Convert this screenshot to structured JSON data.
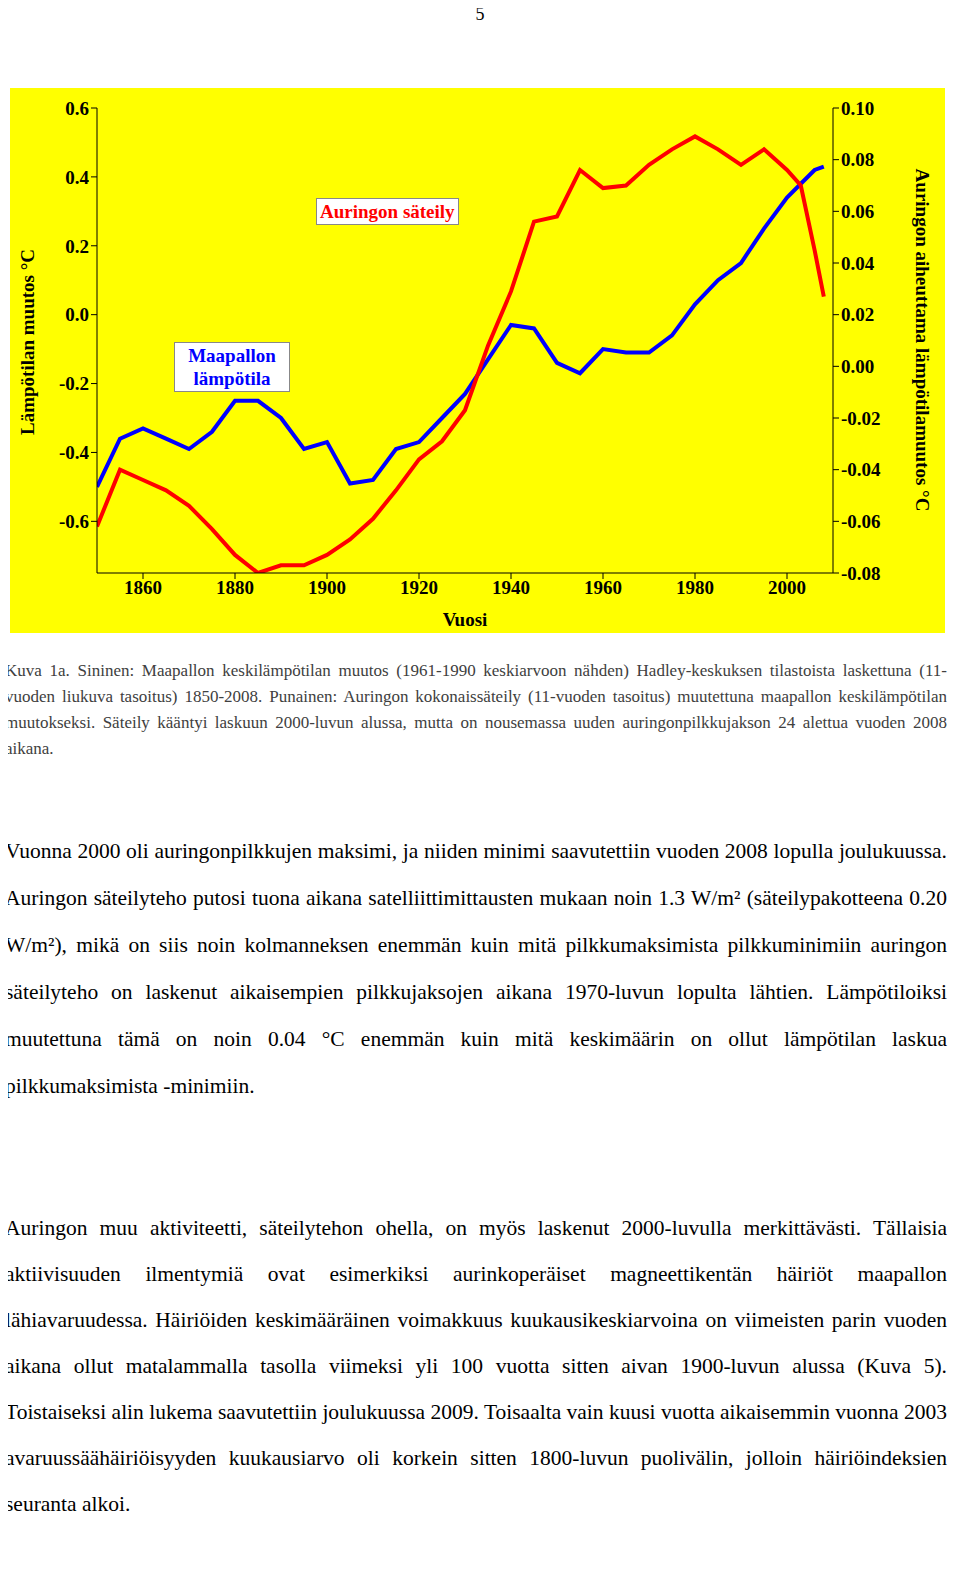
{
  "page_number": "5",
  "chart_data": {
    "type": "line",
    "x": [
      1850,
      1855,
      1860,
      1865,
      1870,
      1875,
      1880,
      1885,
      1890,
      1895,
      1900,
      1905,
      1910,
      1915,
      1920,
      1925,
      1930,
      1935,
      1940,
      1945,
      1950,
      1955,
      1960,
      1965,
      1970,
      1975,
      1980,
      1985,
      1990,
      1995,
      2000,
      2003,
      2006,
      2008
    ],
    "xlim": [
      1850,
      2010
    ],
    "xticks": [
      1860,
      1880,
      1900,
      1920,
      1940,
      1960,
      1980,
      2000
    ],
    "x_label": "Vuosi",
    "y_label": "Lämpötilan muutos °C",
    "y2_label": "Auringon aiheuttama lämpötilamuutos °C",
    "ylim": [
      -0.75,
      0.6
    ],
    "yticks": [
      -0.6,
      -0.4,
      -0.2,
      {
        "value": 0,
        "label": "0.0"
      },
      0.2,
      0.4,
      0.6
    ],
    "y2lim": [
      -0.08,
      0.1
    ],
    "y2ticks": [
      -0.08,
      -0.06,
      -0.04,
      -0.02,
      {
        "value": 0,
        "label": "0.00"
      },
      0.02,
      0.04,
      0.06,
      0.08,
      {
        "value": 0.1,
        "label": "0.10"
      }
    ],
    "grid": false,
    "series": [
      {
        "name": "Maapallon lämpötila",
        "color": "#0000ff",
        "values": [
          -0.5,
          -0.36,
          -0.33,
          -0.36,
          -0.39,
          -0.34,
          -0.25,
          -0.25,
          -0.3,
          -0.39,
          -0.37,
          -0.49,
          -0.48,
          -0.39,
          -0.37,
          -0.3,
          -0.23,
          -0.13,
          -0.03,
          -0.04,
          -0.14,
          -0.17,
          -0.1,
          -0.11,
          -0.11,
          -0.06,
          0.03,
          0.1,
          0.15,
          0.25,
          0.34,
          0.38,
          0.42,
          0.43
        ]
      },
      {
        "name": "Auringon säteily",
        "color": "#ff0000",
        "axis": "y2",
        "values": [
          -0.062,
          -0.04,
          -0.044,
          -0.048,
          -0.054,
          -0.063,
          -0.073,
          -0.08,
          -0.077,
          -0.077,
          -0.073,
          -0.067,
          -0.059,
          -0.048,
          -0.036,
          -0.029,
          -0.017,
          0.008,
          0.029,
          0.056,
          0.058,
          0.076,
          0.069,
          0.07,
          0.078,
          0.084,
          0.089,
          0.084,
          0.078,
          0.084,
          0.076,
          0.07,
          0.045,
          0.027
        ]
      }
    ]
  },
  "caption": "Kuva 1a. Sininen: Maapallon keskilämpötilan muutos (1961-1990 keskiarvoon nähden) Hadley-keskuksen tilastoista laskettuna (11-vuoden liukuva tasoitus) 1850-2008. Punainen: Auringon kokonaissäteily (11-vuoden tasoitus) muutettuna maapallon keskilämpötilan muutokseksi. Säteily kääntyi laskuun 2000-luvun alussa, mutta on nousemassa uuden auringonpilkkujakson 24 alettua vuoden 2008 aikana.",
  "paragraphs": [
    "Vuonna 2000 oli auringonpilkkujen maksimi, ja niiden minimi saavutettiin vuoden 2008 lopulla joulukuussa. Auringon säteilyteho putosi tuona aikana satelliittimittausten mukaan noin 1.3 W/m² (säteilypakotteena 0.20 W/m²), mikä on siis noin kolmanneksen enemmän kuin mitä pilkkumaksimista pilkkuminimiin auringon säteilyteho on laskenut aikaisempien pilkkujaksojen aikana 1970-luvun lopulta lähtien. Lämpötiloiksi muutettuna tämä on noin 0.04 °C enemmän kuin mitä keskimäärin on ollut lämpötilan laskua pilkkumaksimista -minimiin.",
    "Auringon muu aktiviteetti, säteilytehon ohella, on myös laskenut 2000-luvulla merkittävästi. Tällaisia aktiivisuuden ilmentymiä ovat esimerkiksi aurinkoperäiset magneettikentän häiriöt maapallon lähiavaruudessa. Häiriöiden keskimääräinen voimakkuus kuukausikeskiarvoina on viimeisten parin vuoden aikana ollut matalammalla tasolla viimeksi yli 100 vuotta sitten aivan 1900-luvun alussa (Kuva 5). Toistaiseksi alin lukema saavutettiin joulukuussa 2009. Toisaalta vain kuusi vuotta aikaisemmin vuonna 2003 avaruussäähäiriöisyyden kuukausiarvo oli korkein sitten 1800-luvun puolivälin, jolloin häiriöindeksien seuranta alkoi."
  ]
}
